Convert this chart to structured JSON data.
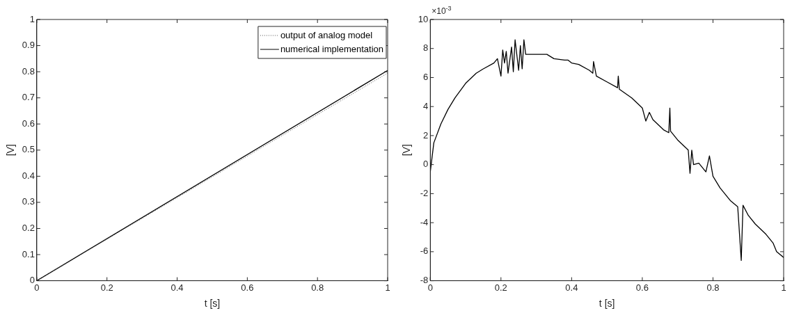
{
  "chart_data": [
    {
      "type": "line",
      "xlabel": "t [s]",
      "ylabel": "[V]",
      "xlim": [
        0,
        1
      ],
      "xticks": [
        0,
        0.2,
        0.4,
        0.6,
        0.8,
        1
      ],
      "ylim": [
        0,
        1
      ],
      "yticks": [
        0,
        0.1,
        0.2,
        0.3,
        0.4,
        0.5,
        0.6,
        0.7,
        0.8,
        0.9,
        1
      ],
      "grid": false,
      "legend": "top right",
      "marker": "none",
      "series": [
        {
          "name": "output of analog model",
          "color": "#555555",
          "line_style": "dotted",
          "x": [
            0,
            1
          ],
          "values": [
            0,
            0.795
          ]
        },
        {
          "name": "numerical implementation",
          "color": "#000000",
          "line_style": "solid",
          "x": [
            0,
            1
          ],
          "values": [
            0,
            0.805
          ]
        }
      ]
    },
    {
      "type": "line",
      "xlabel": "t [s]",
      "ylabel": "[V]",
      "xlim": [
        0,
        1
      ],
      "xticks": [
        0,
        0.2,
        0.4,
        0.6,
        0.8,
        1
      ],
      "ylim": [
        -8,
        10
      ],
      "yticks": [
        -8,
        -6,
        -4,
        -2,
        0,
        2,
        4,
        6,
        8,
        10
      ],
      "grid": false,
      "legend": false,
      "marker": "none",
      "annotations": [
        "×10$^{-3}$"
      ],
      "series": [
        {
          "color": "#000000",
          "line_style": "solid",
          "x": [
            0,
            0.01,
            0.03,
            0.05,
            0.07,
            0.1,
            0.13,
            0.15,
            0.18,
            0.19,
            0.2,
            0.205,
            0.21,
            0.215,
            0.22,
            0.23,
            0.235,
            0.24,
            0.25,
            0.255,
            0.26,
            0.265,
            0.27,
            0.3,
            0.33,
            0.35,
            0.38,
            0.39,
            0.4,
            0.42,
            0.45,
            0.46,
            0.462,
            0.47,
            0.5,
            0.53,
            0.532,
            0.535,
            0.57,
            0.6,
            0.61,
            0.62,
            0.63,
            0.66,
            0.675,
            0.678,
            0.68,
            0.7,
            0.73,
            0.735,
            0.74,
            0.745,
            0.76,
            0.78,
            0.79,
            0.8,
            0.82,
            0.85,
            0.87,
            0.88,
            0.885,
            0.9,
            0.92,
            0.95,
            0.97,
            0.98,
            1
          ],
          "values": [
            -0.5,
            1.5,
            2.8,
            3.8,
            4.6,
            5.6,
            6.3,
            6.6,
            7,
            7.3,
            6.1,
            7.9,
            7,
            7.8,
            6.3,
            8.1,
            6.4,
            8.6,
            6.5,
            8.2,
            6.6,
            8.6,
            7.6,
            7.6,
            7.6,
            7.3,
            7.2,
            7.2,
            7,
            6.9,
            6.5,
            6.3,
            7.1,
            6.1,
            5.7,
            5.3,
            6.1,
            5.2,
            4.6,
            3.9,
            3,
            3.6,
            3.1,
            2.4,
            2.2,
            3.9,
            2.3,
            1.7,
            1,
            -0.6,
            1,
            0,
            0.1,
            -0.5,
            0.6,
            -0.8,
            -1.6,
            -2.5,
            -2.9,
            -6.6,
            -2.8,
            -3.5,
            -4.1,
            -4.8,
            -5.4,
            -6,
            -6.4
          ]
        }
      ]
    }
  ]
}
